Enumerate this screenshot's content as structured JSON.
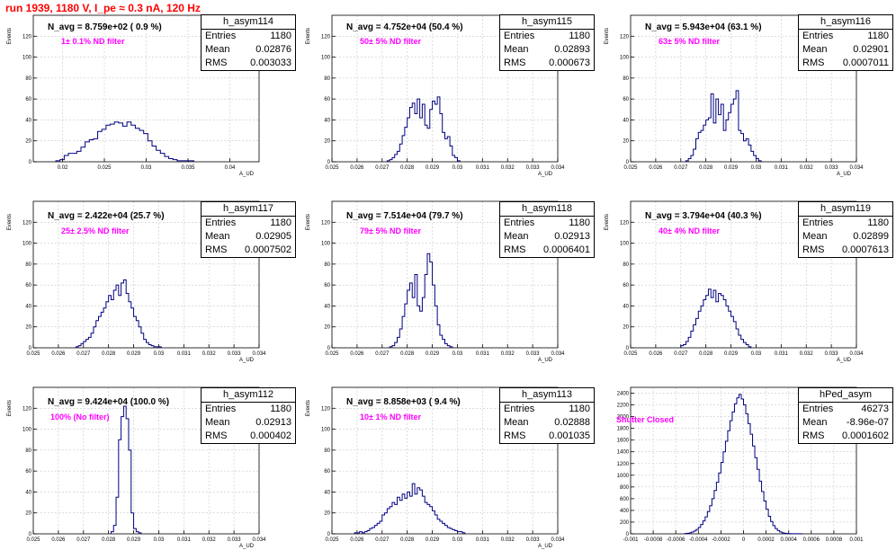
{
  "canvas_title": "run 1939,  1180 V, I_pe ≈ 0.3 nA, 120 Hz",
  "chart_data": [
    {
      "type": "histogram",
      "name": "h_asym114",
      "xlabel": "A_UD",
      "ylabel": "Events",
      "xlim": [
        0.0165,
        0.0435
      ],
      "ylim": [
        0,
        140
      ],
      "xticks": [
        0.02,
        0.025,
        0.03,
        0.035,
        0.04
      ],
      "xtick_labels": [
        "0.02",
        "0.025",
        "0.03",
        "0.035",
        "0.04"
      ],
      "yticks": [
        0,
        20,
        40,
        60,
        80,
        100,
        120
      ],
      "ytick_labels": [
        "0",
        "20",
        "40",
        "60",
        "80",
        "100",
        "120"
      ],
      "annotation": "N_avg = 8.759e+02 ( 0.9 %)",
      "filter_label": "1± 0.1% ND filter",
      "stats": {
        "entries": "1180",
        "mean": "0.02876",
        "rms": "0.003033"
      },
      "bins": {
        "start": 0.0192,
        "width": 0.0005,
        "counts": [
          1,
          2,
          6,
          8,
          8,
          10,
          14,
          19,
          21,
          22,
          29,
          31,
          35,
          36,
          38,
          37,
          34,
          38,
          35,
          32,
          30,
          27,
          20,
          15,
          11,
          8,
          5,
          3,
          2,
          1,
          1,
          1,
          1
        ]
      },
      "grid": true,
      "stats_box": "top-right"
    },
    {
      "type": "histogram",
      "name": "h_asym115",
      "xlabel": "A_UD",
      "ylabel": "Events",
      "xlim": [
        0.025,
        0.034
      ],
      "ylim": [
        0,
        140
      ],
      "xticks": [
        0.025,
        0.026,
        0.027,
        0.028,
        0.029,
        0.03,
        0.031,
        0.032,
        0.033,
        0.034
      ],
      "xtick_labels": [
        "0.025",
        "0.026",
        "0.027",
        "0.028",
        "0.029",
        "0.03",
        "0.031",
        "0.032",
        "0.033",
        "0.034"
      ],
      "yticks": [
        0,
        20,
        40,
        60,
        80,
        100,
        120
      ],
      "ytick_labels": [
        "0",
        "20",
        "40",
        "60",
        "80",
        "100",
        "120"
      ],
      "annotation": "N_avg = 4.752e+04 (50.4 %)",
      "filter_label": "50± 5% ND filter",
      "stats": {
        "entries": "1180",
        "mean": "0.02893",
        "rms": "0.000673"
      },
      "bins": {
        "start": 0.0272,
        "width": 0.0001,
        "counts": [
          1,
          2,
          4,
          7,
          10,
          17,
          25,
          33,
          42,
          52,
          56,
          46,
          60,
          42,
          55,
          35,
          32,
          50,
          58,
          55,
          62,
          46,
          28,
          22,
          24,
          15,
          6,
          4,
          1
        ]
      },
      "grid": true,
      "stats_box": "top-right"
    },
    {
      "type": "histogram",
      "name": "h_asym116",
      "xlabel": "A_UD",
      "ylabel": "Events",
      "xlim": [
        0.025,
        0.034
      ],
      "ylim": [
        0,
        140
      ],
      "xticks": [
        0.025,
        0.026,
        0.027,
        0.028,
        0.029,
        0.03,
        0.031,
        0.032,
        0.033,
        0.034
      ],
      "xtick_labels": [
        "0.025",
        "0.026",
        "0.027",
        "0.028",
        "0.029",
        "0.03",
        "0.031",
        "0.032",
        "0.033",
        "0.034"
      ],
      "yticks": [
        0,
        20,
        40,
        60,
        80,
        100,
        120
      ],
      "ytick_labels": [
        "0",
        "20",
        "40",
        "60",
        "80",
        "100",
        "120"
      ],
      "annotation": "N_avg = 5.943e+04 (63.1 %)",
      "filter_label": "63± 5% ND filter",
      "stats": {
        "entries": "1180",
        "mean": "0.02901",
        "rms": "0.0007011"
      },
      "bins": {
        "start": 0.0272,
        "width": 0.0001,
        "counts": [
          1,
          3,
          6,
          12,
          22,
          28,
          30,
          35,
          40,
          42,
          65,
          37,
          60,
          45,
          55,
          30,
          40,
          47,
          55,
          60,
          68,
          30,
          27,
          20,
          22,
          16,
          10,
          6,
          3,
          1
        ]
      },
      "grid": true,
      "stats_box": "top-right"
    },
    {
      "type": "histogram",
      "name": "h_asym117",
      "xlabel": "A_UD",
      "ylabel": "Events",
      "xlim": [
        0.025,
        0.034
      ],
      "ylim": [
        0,
        140
      ],
      "xticks": [
        0.025,
        0.026,
        0.027,
        0.028,
        0.029,
        0.03,
        0.031,
        0.032,
        0.033,
        0.034
      ],
      "xtick_labels": [
        "0.025",
        "0.026",
        "0.027",
        "0.028",
        "0.029",
        "0.03",
        "0.031",
        "0.032",
        "0.033",
        "0.034"
      ],
      "yticks": [
        0,
        20,
        40,
        60,
        80,
        100,
        120
      ],
      "ytick_labels": [
        "0",
        "20",
        "40",
        "60",
        "80",
        "100",
        "120"
      ],
      "annotation": "N_avg = 2.422e+04 (25.7 %)",
      "filter_label": "25± 2.5% ND filter",
      "stats": {
        "entries": "1180",
        "mean": "0.02905",
        "rms": "0.0007502"
      },
      "bins": {
        "start": 0.0267,
        "width": 0.0001,
        "counts": [
          1,
          2,
          4,
          6,
          8,
          10,
          14,
          20,
          26,
          30,
          34,
          38,
          44,
          50,
          46,
          55,
          60,
          50,
          62,
          65,
          52,
          44,
          38,
          30,
          26,
          20,
          14,
          8,
          5,
          3,
          2,
          1,
          1,
          1
        ]
      },
      "grid": true,
      "stats_box": "top-right"
    },
    {
      "type": "histogram",
      "name": "h_asym118",
      "xlabel": "A_UD",
      "ylabel": "Events",
      "xlim": [
        0.025,
        0.034
      ],
      "ylim": [
        0,
        140
      ],
      "xticks": [
        0.025,
        0.026,
        0.027,
        0.028,
        0.029,
        0.03,
        0.031,
        0.032,
        0.033,
        0.034
      ],
      "xtick_labels": [
        "0.025",
        "0.026",
        "0.027",
        "0.028",
        "0.029",
        "0.03",
        "0.031",
        "0.032",
        "0.033",
        "0.034"
      ],
      "yticks": [
        0,
        20,
        40,
        60,
        80,
        100,
        120
      ],
      "ytick_labels": [
        "0",
        "20",
        "40",
        "60",
        "80",
        "100",
        "120"
      ],
      "annotation": "N_avg = 7.514e+04 (79.7 %)",
      "filter_label": "79± 5% ND filter",
      "stats": {
        "entries": "1180",
        "mean": "0.02913",
        "rms": "0.0006401"
      },
      "bins": {
        "start": 0.0273,
        "width": 0.0001,
        "counts": [
          1,
          2,
          5,
          10,
          18,
          30,
          42,
          55,
          62,
          48,
          70,
          40,
          35,
          48,
          70,
          90,
          82,
          60,
          40,
          22,
          12,
          8,
          4,
          2,
          1
        ]
      },
      "grid": true,
      "stats_box": "top-right"
    },
    {
      "type": "histogram",
      "name": "h_asym119",
      "xlabel": "A_UD",
      "ylabel": "Events",
      "xlim": [
        0.025,
        0.034
      ],
      "ylim": [
        0,
        140
      ],
      "xticks": [
        0.025,
        0.026,
        0.027,
        0.028,
        0.029,
        0.03,
        0.031,
        0.032,
        0.033,
        0.034
      ],
      "xtick_labels": [
        "0.025",
        "0.026",
        "0.027",
        "0.028",
        "0.029",
        "0.03",
        "0.031",
        "0.032",
        "0.033",
        "0.034"
      ],
      "yticks": [
        0,
        20,
        40,
        60,
        80,
        100,
        120
      ],
      "ytick_labels": [
        "0",
        "20",
        "40",
        "60",
        "80",
        "100",
        "120"
      ],
      "annotation": "N_avg = 3.794e+04 (40.3 %)",
      "filter_label": "40± 4% ND filter",
      "stats": {
        "entries": "1180",
        "mean": "0.02899",
        "rms": "0.0007613"
      },
      "bins": {
        "start": 0.027,
        "width": 0.0001,
        "counts": [
          2,
          3,
          6,
          10,
          16,
          22,
          28,
          35,
          40,
          46,
          50,
          56,
          48,
          55,
          44,
          52,
          50,
          46,
          40,
          35,
          30,
          25,
          18,
          12,
          8,
          5,
          3,
          1
        ]
      },
      "grid": true,
      "stats_box": "top-right"
    },
    {
      "type": "histogram",
      "name": "h_asym112",
      "xlabel": "A_UD",
      "ylabel": "Events",
      "xlim": [
        0.025,
        0.034
      ],
      "ylim": [
        0,
        140
      ],
      "xticks": [
        0.025,
        0.026,
        0.027,
        0.028,
        0.029,
        0.03,
        0.031,
        0.032,
        0.033,
        0.034
      ],
      "xtick_labels": [
        "0.025",
        "0.026",
        "0.027",
        "0.028",
        "0.029",
        "0.03",
        "0.031",
        "0.032",
        "0.033",
        "0.034"
      ],
      "yticks": [
        0,
        20,
        40,
        60,
        80,
        100,
        120
      ],
      "ytick_labels": [
        "0",
        "20",
        "40",
        "60",
        "80",
        "100",
        "120"
      ],
      "annotation": "N_avg = 9.424e+04 (100.0 %)",
      "filter_label": "100% (No filter)",
      "stats": {
        "entries": "1180",
        "mean": "0.02913",
        "rms": "0.000402"
      },
      "bins": {
        "start": 0.0281,
        "width": 0.0001,
        "counts": [
          2,
          8,
          35,
          90,
          112,
          122,
          110,
          80,
          20,
          5,
          2,
          1
        ]
      },
      "grid": true,
      "stats_box": "top-right"
    },
    {
      "type": "histogram",
      "name": "h_asym113",
      "xlabel": "A_UD",
      "ylabel": "Events",
      "xlim": [
        0.025,
        0.034
      ],
      "ylim": [
        0,
        140
      ],
      "xticks": [
        0.025,
        0.026,
        0.027,
        0.028,
        0.029,
        0.03,
        0.031,
        0.032,
        0.033,
        0.034
      ],
      "xtick_labels": [
        "0.025",
        "0.026",
        "0.027",
        "0.028",
        "0.029",
        "0.03",
        "0.031",
        "0.032",
        "0.033",
        "0.034"
      ],
      "yticks": [
        0,
        20,
        40,
        60,
        80,
        100,
        120
      ],
      "ytick_labels": [
        "0",
        "20",
        "40",
        "60",
        "80",
        "100",
        "120"
      ],
      "annotation": "N_avg = 8.858e+03 ( 9.4 %)",
      "filter_label": "10± 1% ND filter",
      "stats": {
        "entries": "1180",
        "mean": "0.02888",
        "rms": "0.001035"
      },
      "bins": {
        "start": 0.0259,
        "width": 0.0001,
        "counts": [
          1,
          1,
          2,
          1,
          2,
          3,
          5,
          6,
          8,
          10,
          12,
          18,
          20,
          24,
          26,
          30,
          28,
          35,
          32,
          38,
          34,
          40,
          36,
          48,
          38,
          44,
          42,
          36,
          30,
          28,
          26,
          22,
          18,
          14,
          12,
          10,
          8,
          6,
          5,
          4,
          3,
          2,
          2,
          1
        ]
      },
      "grid": true,
      "stats_box": "top-right"
    },
    {
      "type": "histogram",
      "name": "hPed_asym",
      "xlabel": "",
      "ylabel": "",
      "xlim": [
        -0.001,
        0.001
      ],
      "ylim": [
        0,
        2500
      ],
      "xticks": [
        -0.001,
        -0.0008,
        -0.0006,
        -0.0004,
        -0.0002,
        0,
        0.0002,
        0.0004,
        0.0006,
        0.0008,
        0.001
      ],
      "xtick_labels": [
        "-0.001",
        "-0.0008",
        "-0.0006",
        "-0.0004",
        "-0.0002",
        "0",
        "0.0002",
        "0.0004",
        "0.0006",
        "0.0008",
        "0.001"
      ],
      "yticks": [
        0,
        200,
        400,
        600,
        800,
        1000,
        1200,
        1400,
        1600,
        1800,
        2000,
        2200,
        2400
      ],
      "ytick_labels": [
        "0",
        "200",
        "400",
        "600",
        "800",
        "1000",
        "1200",
        "1400",
        "1600",
        "1800",
        "2000",
        "2200",
        "2400"
      ],
      "annotation": "",
      "filter_label": "Shutter Closed",
      "stats": {
        "entries": "46273",
        "mean": "-8.96e-07",
        "rms": "0.0001602"
      },
      "bins": {
        "start": -0.00052,
        "width": 2e-05,
        "counts": [
          5,
          10,
          18,
          30,
          48,
          75,
          110,
          160,
          220,
          290,
          380,
          480,
          600,
          740,
          880,
          1040,
          1220,
          1400,
          1580,
          1760,
          1930,
          2080,
          2220,
          2320,
          2380,
          2300,
          2200,
          2050,
          1880,
          1700,
          1500,
          1300,
          1100,
          900,
          720,
          560,
          420,
          300,
          210,
          140,
          90,
          55,
          32,
          18,
          10,
          5,
          3,
          2,
          1,
          1,
          1,
          1
        ]
      },
      "grid": true,
      "stats_box": "top-right"
    }
  ]
}
